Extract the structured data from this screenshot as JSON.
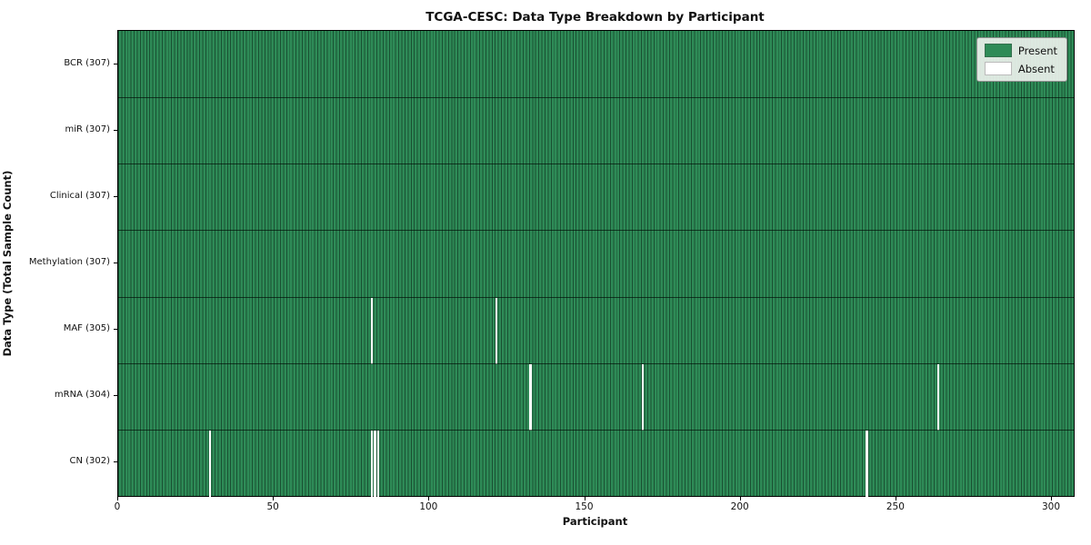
{
  "title": "TCGA-CESC: Data Type Breakdown by Participant",
  "legend": {
    "present_label": "Present",
    "absent_label": "Absent"
  },
  "chart_data": {
    "type": "heatmap",
    "title": "TCGA-CESC: Data Type Breakdown by Participant",
    "xlabel": "Participant",
    "ylabel": "Data Type (Total Sample Count)",
    "x_range": [
      0,
      307
    ],
    "total_participants": 307,
    "xticks": [
      0,
      50,
      100,
      150,
      200,
      250,
      300
    ],
    "grid": "cell-borders",
    "legend_position": "upper-right",
    "colors": {
      "present": "#2e8b57",
      "absent": "#ffffff",
      "cell_edge": "rgba(8,32,20,0.55)",
      "row_divider": "rgba(0,10,5,0.65)"
    },
    "legend": [
      {
        "label": "Present",
        "color": "#2e8b57"
      },
      {
        "label": "Absent",
        "color": "#ffffff"
      }
    ],
    "rows": [
      {
        "label": "BCR (307)",
        "data_type": "BCR",
        "present_count": 307,
        "absent_participants": []
      },
      {
        "label": "miR (307)",
        "data_type": "miR",
        "present_count": 307,
        "absent_participants": []
      },
      {
        "label": "Clinical (307)",
        "data_type": "Clinical",
        "present_count": 307,
        "absent_participants": []
      },
      {
        "label": "Methylation (307)",
        "data_type": "Methylation",
        "present_count": 307,
        "absent_participants": []
      },
      {
        "label": "MAF (305)",
        "data_type": "MAF",
        "present_count": 305,
        "absent_participants": [
          81,
          121
        ]
      },
      {
        "label": "mRNA (304)",
        "data_type": "mRNA",
        "present_count": 304,
        "absent_participants": [
          132,
          168,
          263
        ]
      },
      {
        "label": "CN (302)",
        "data_type": "CN",
        "present_count": 302,
        "absent_participants": [
          29,
          81,
          82,
          83,
          240
        ]
      }
    ]
  }
}
